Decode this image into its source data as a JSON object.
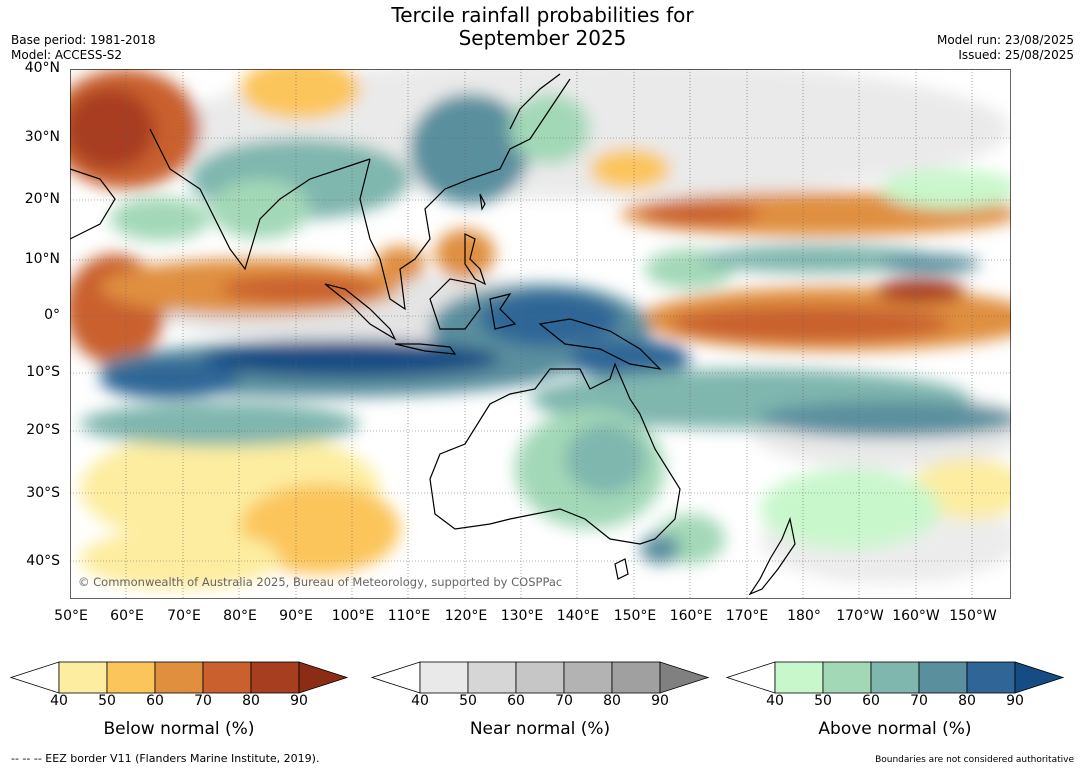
{
  "title": [
    "Tercile rainfall probabilities for",
    "September 2025"
  ],
  "meta_left": [
    "Base period: 1981-2018",
    "Model: ACCESS-S2"
  ],
  "meta_right": [
    "Model run: 23/08/2025",
    "Issued: 25/08/2025"
  ],
  "map": {
    "lat_ticks": [
      "40°N",
      "30°N",
      "20°N",
      "10°N",
      "0°",
      "10°S",
      "20°S",
      "30°S",
      "40°S"
    ],
    "lon_ticks": [
      "50°E",
      "60°E",
      "70°E",
      "80°E",
      "90°E",
      "100°E",
      "110°E",
      "120°E",
      "130°E",
      "140°E",
      "150°E",
      "160°E",
      "170°E",
      "180°",
      "170°W",
      "160°W",
      "150°W"
    ],
    "copyright": "© Commonwealth of Australia 2025, Bureau of Meteorology, supported by COSPPac"
  },
  "colorbars": [
    {
      "title": "Below normal (%)",
      "labels": [
        "40",
        "50",
        "60",
        "70",
        "80",
        "90"
      ],
      "colors": [
        "#fdeda0",
        "#fcc55c",
        "#e08f3f",
        "#c9602e",
        "#a83e20"
      ],
      "extend_color": "#8b2d14"
    },
    {
      "title": "Near normal (%)",
      "labels": [
        "40",
        "50",
        "60",
        "70",
        "80",
        "90"
      ],
      "colors": [
        "#e9e9e9",
        "#d6d6d6",
        "#c6c6c6",
        "#b3b3b3",
        "#a0a0a0"
      ],
      "extend_color": "#808080"
    },
    {
      "title": "Above normal (%)",
      "labels": [
        "40",
        "50",
        "60",
        "70",
        "80",
        "90"
      ],
      "colors": [
        "#c9f7cc",
        "#a3d8b7",
        "#7fb6ae",
        "#5a8f9e",
        "#2f6697"
      ],
      "extend_color": "#144c83"
    }
  ],
  "footer_left": "-- -- -- EEZ border V11 (Flanders Marine Institute, 2019).",
  "footer_right": "Boundaries are not considered authoritative"
}
